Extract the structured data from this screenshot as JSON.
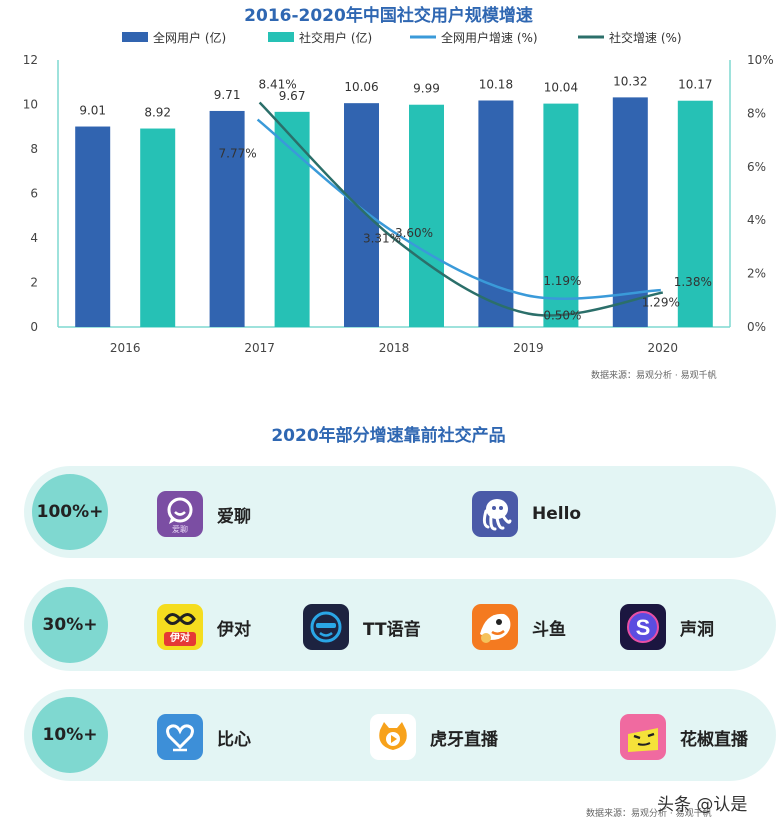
{
  "chart_title": "2016-2020年中国社交用户规模增速",
  "chart_data": {
    "type": "bar",
    "title": "2016-2020年中国社交用户规模增速",
    "categories": [
      "2016",
      "2017",
      "2018",
      "2019",
      "2020"
    ],
    "series": [
      {
        "name": "全网用户 (亿)",
        "kind": "bar",
        "axis": "left",
        "color": "#3164b0",
        "values": [
          9.01,
          9.71,
          10.06,
          10.18,
          10.32
        ]
      },
      {
        "name": "社交用户 (亿)",
        "kind": "bar",
        "axis": "left",
        "color": "#26c1b5",
        "values": [
          8.92,
          9.67,
          9.99,
          10.04,
          10.17
        ]
      },
      {
        "name": "全网用户增速 (%)",
        "kind": "line",
        "axis": "right",
        "color": "#3a9ad9",
        "values": [
          null,
          7.77,
          3.6,
          1.19,
          1.38
        ]
      },
      {
        "name": "社交增速 (%)",
        "kind": "line",
        "axis": "right",
        "color": "#2b6f6a",
        "values": [
          null,
          8.41,
          3.31,
          0.5,
          1.29
        ]
      }
    ],
    "y_left_ticks": [
      "0",
      "2",
      "4",
      "6",
      "8",
      "10",
      "12"
    ],
    "y_right_ticks": [
      "0%",
      "2%",
      "4%",
      "6%",
      "8%",
      "10%"
    ],
    "ylim_left": [
      0,
      12
    ],
    "ylim_right": [
      0,
      10
    ],
    "legend_position": "top",
    "grid": false
  },
  "source_1": "数据来源：易观分析 · 易观千帆",
  "products_title": "2020年部分增速靠前社交产品",
  "rows": [
    {
      "badge": "100%+",
      "products": [
        {
          "name": "爱聊",
          "icon": "aichat-icon",
          "icon_text": "爱聊"
        },
        {
          "name": "Hello",
          "icon": "hello-octopus-icon"
        }
      ]
    },
    {
      "badge": "30%+",
      "products": [
        {
          "name": "伊对",
          "icon": "yidui-icon",
          "icon_text": "伊对"
        },
        {
          "name": "TT语音",
          "icon": "tt-voice-icon"
        },
        {
          "name": "斗鱼",
          "icon": "douyu-icon"
        },
        {
          "name": "声洞",
          "icon": "shengdong-icon"
        }
      ]
    },
    {
      "badge": "10%+",
      "products": [
        {
          "name": "比心",
          "icon": "bixin-icon"
        },
        {
          "name": "虎牙直播",
          "icon": "huya-icon"
        },
        {
          "name": "花椒直播",
          "icon": "huajiao-icon"
        }
      ]
    }
  ],
  "source_2": "数据来源：易观分析 · 易观千帆",
  "watermark": "头条 @认是"
}
